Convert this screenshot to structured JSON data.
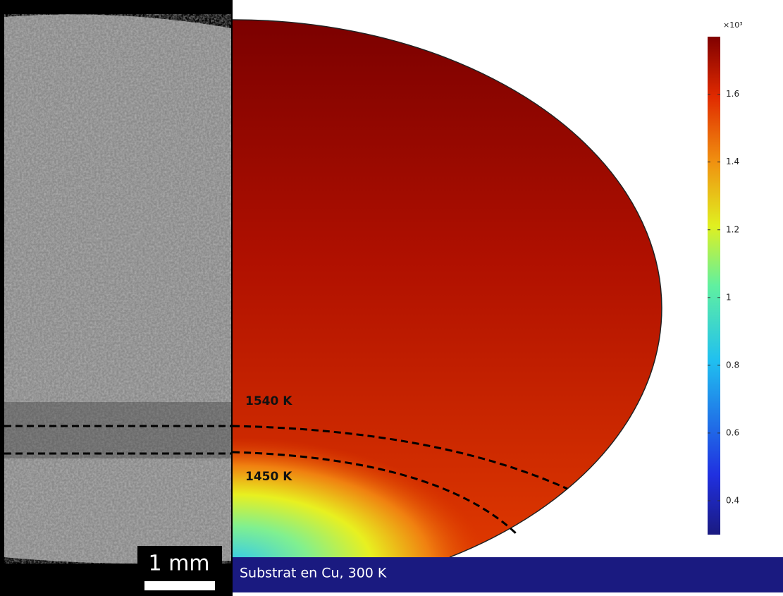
{
  "micrograph": {
    "scale_bar": "1 mm"
  },
  "simulation": {
    "isotherms": [
      {
        "label": "1540 K"
      },
      {
        "label": "1450 K"
      }
    ],
    "substrate": "Substrat en Cu, 300 K",
    "colorbar": {
      "multiplier": "×10³",
      "lim": [
        0.3,
        1.77
      ],
      "ticks": [
        0.4,
        0.6,
        0.8,
        1,
        1.2,
        1.4,
        1.6
      ]
    }
  }
}
